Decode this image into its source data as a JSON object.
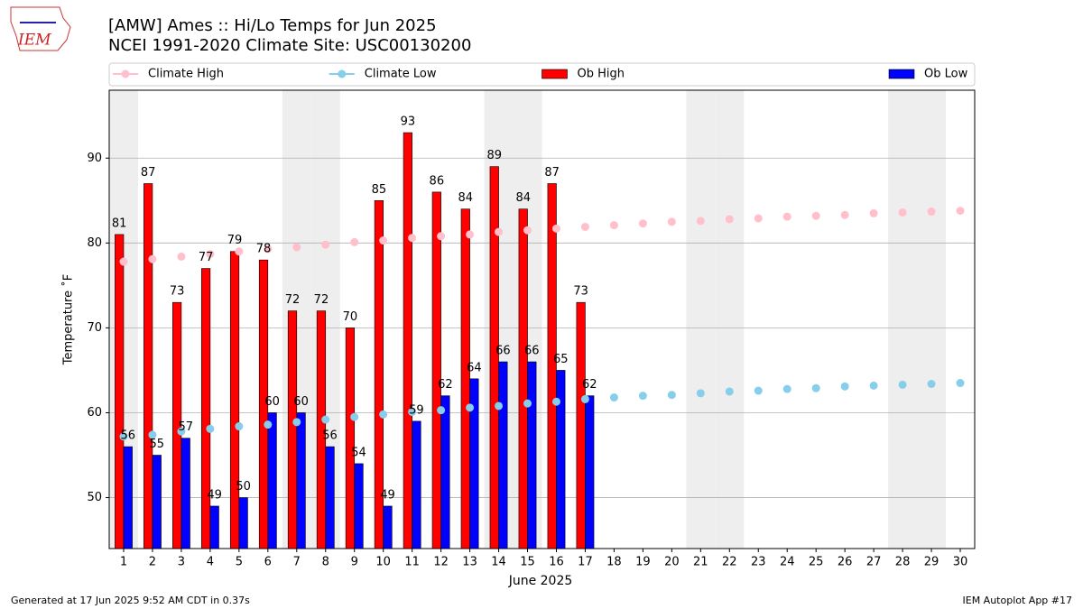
{
  "chart_data": {
    "type": "bar",
    "title": "[AMW] Ames :: Hi/Lo Temps for Jun 2025",
    "subtitle": "NCEI 1991-2020 Climate Site: USC00130200",
    "xlabel": "June 2025",
    "ylabel": "Temperature ˚F",
    "logo": "IEM",
    "footer_left": "Generated at 17 Jun 2025 9:52 AM CDT in 0.37s",
    "footer_right": "IEM Autoplot App #17",
    "x": [
      1,
      2,
      3,
      4,
      5,
      6,
      7,
      8,
      9,
      10,
      11,
      12,
      13,
      14,
      15,
      16,
      17,
      18,
      19,
      20,
      21,
      22,
      23,
      24,
      25,
      26,
      27,
      28,
      29,
      30
    ],
    "shaded_days": [
      1,
      7,
      8,
      14,
      15,
      21,
      22,
      28,
      29
    ],
    "shade_color": "#eeeeee",
    "series": [
      {
        "name": "Climate High",
        "type": "line",
        "color": "#ffc0cb",
        "values": [
          77.8,
          78.1,
          78.4,
          78.7,
          79.0,
          79.3,
          79.5,
          79.8,
          80.1,
          80.3,
          80.6,
          80.8,
          81.0,
          81.3,
          81.5,
          81.7,
          81.9,
          82.1,
          82.3,
          82.5,
          82.6,
          82.8,
          82.9,
          83.1,
          83.2,
          83.3,
          83.5,
          83.6,
          83.7,
          83.8
        ]
      },
      {
        "name": "Climate Low",
        "type": "line",
        "color": "#87ceeb",
        "values": [
          57.2,
          57.4,
          57.8,
          58.1,
          58.4,
          58.6,
          58.9,
          59.2,
          59.5,
          59.8,
          60.1,
          60.3,
          60.6,
          60.8,
          61.1,
          61.3,
          61.6,
          61.8,
          62.0,
          62.1,
          62.3,
          62.5,
          62.6,
          62.8,
          62.9,
          63.1,
          63.2,
          63.3,
          63.4,
          63.5
        ]
      },
      {
        "name": "Ob High",
        "type": "bar",
        "color": "#ff0000",
        "values": [
          81,
          87,
          73,
          77,
          79,
          78,
          72,
          72,
          70,
          85,
          93,
          86,
          84,
          89,
          84,
          87,
          73,
          null,
          null,
          null,
          null,
          null,
          null,
          null,
          null,
          null,
          null,
          null,
          null,
          null
        ]
      },
      {
        "name": "Ob Low",
        "type": "bar",
        "color": "#0000ff",
        "values": [
          56,
          55,
          57,
          49,
          50,
          60,
          60,
          56,
          54,
          49,
          59,
          62,
          64,
          66,
          66,
          65,
          62,
          null,
          null,
          null,
          null,
          null,
          null,
          null,
          null,
          null,
          null,
          null,
          null,
          null
        ]
      }
    ],
    "xlim": [
      0.5,
      30.5
    ],
    "xticks": [
      1,
      2,
      3,
      4,
      5,
      6,
      7,
      8,
      9,
      10,
      11,
      12,
      13,
      14,
      15,
      16,
      17,
      18,
      19,
      20,
      21,
      22,
      23,
      24,
      25,
      26,
      27,
      28,
      29,
      30
    ],
    "ylim": [
      44,
      98
    ],
    "yticks": [
      50,
      60,
      70,
      80,
      90
    ],
    "grid": true,
    "legend": "top"
  }
}
